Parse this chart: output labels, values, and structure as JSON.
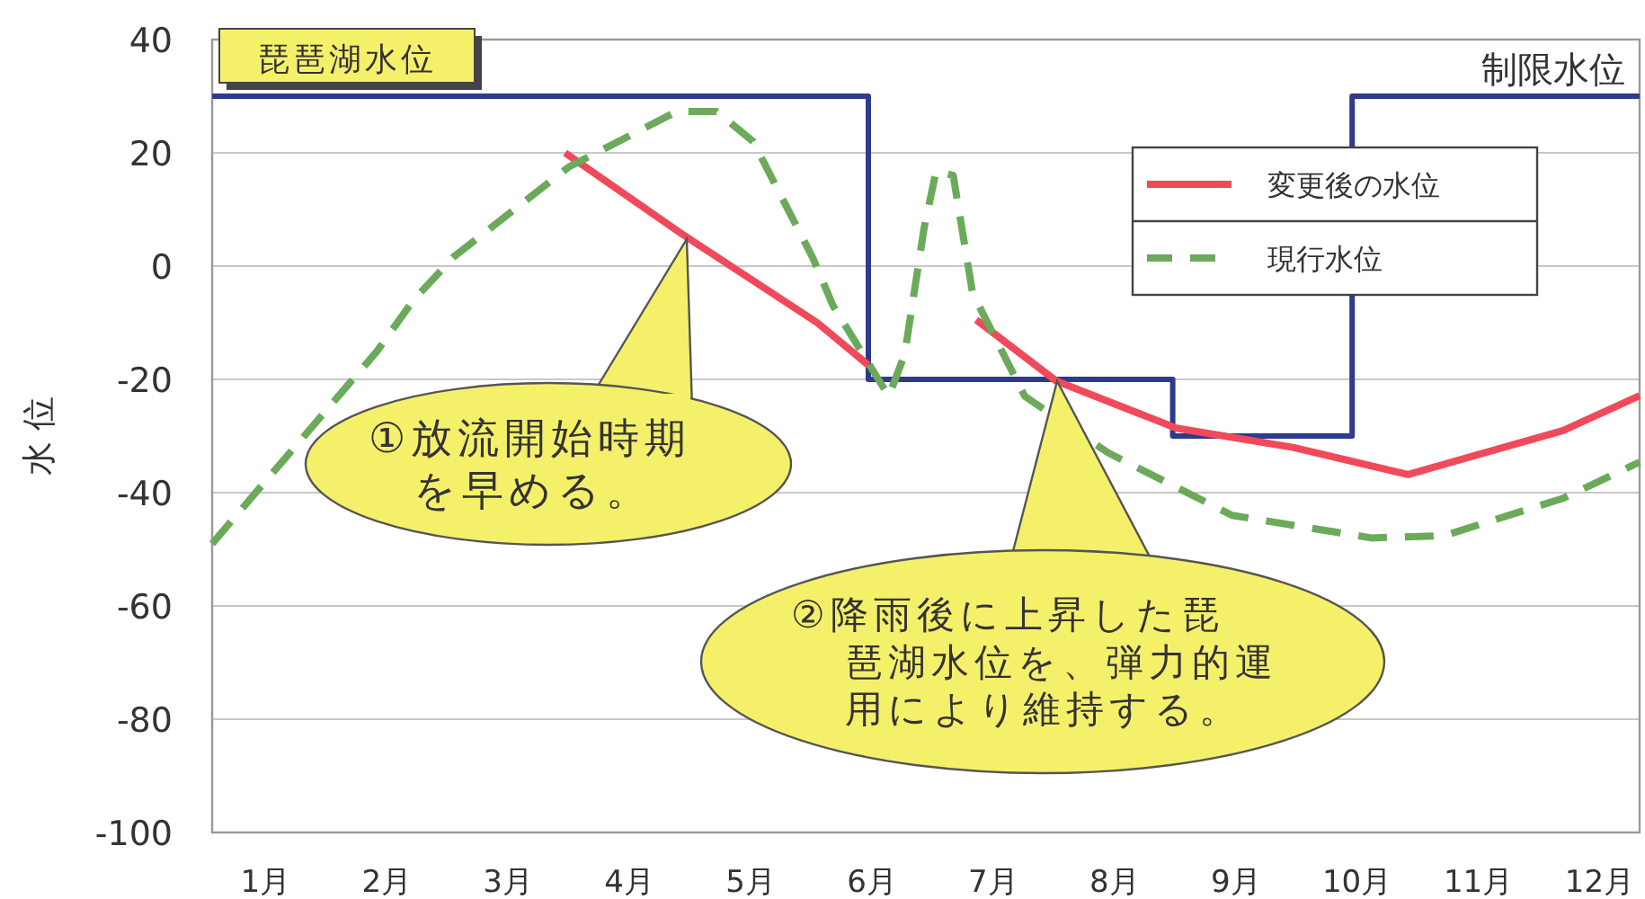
{
  "chart_data": {
    "type": "line",
    "title": "琵琶湖水位",
    "ylabel": "水 位",
    "x": [
      0.56,
      0.93,
      1.92,
      2.22,
      2.55,
      3.5,
      4.39,
      4.72,
      5.02,
      5.51,
      5.68,
      6.14,
      6.27,
      6.43,
      6.53,
      6.67,
      6.83,
      7.26,
      7.95,
      8.97,
      10.12,
      10.72,
      11.7,
      12.33
    ],
    "xlim": [
      0.56,
      12.33
    ],
    "ylim": [
      -100,
      40
    ],
    "yticks": [
      -100,
      -80,
      -60,
      -40,
      -20,
      0,
      20,
      40
    ],
    "xticks": [
      {
        "value": 1,
        "label": "1月"
      },
      {
        "value": 2,
        "label": "2月"
      },
      {
        "value": 3,
        "label": "3月"
      },
      {
        "value": 4,
        "label": "4月"
      },
      {
        "value": 5,
        "label": "5月"
      },
      {
        "value": 6,
        "label": "6月"
      },
      {
        "value": 7,
        "label": "7月"
      },
      {
        "value": 8,
        "label": "8月"
      },
      {
        "value": 9,
        "label": "9月"
      },
      {
        "value": 10,
        "label": "10月"
      },
      {
        "value": 11,
        "label": "11月"
      },
      {
        "value": 12,
        "label": "12月"
      }
    ],
    "grid": "y",
    "legend": "top right",
    "series": [
      {
        "name": "制限水位",
        "type": "step",
        "color": "#2e3a8c",
        "line_style": "solid",
        "x": [
          0.56,
          5.97,
          8.48,
          9.96,
          12.33
        ],
        "values": [
          30,
          -20,
          -30,
          30,
          30
        ]
      },
      {
        "name": "変更後の水位",
        "color": "#f04a5a",
        "line_style": "solid",
        "x": [
          3.47,
          4.43,
          5.55,
          5.97,
          null,
          6.86,
          7.52,
          8.51,
          9.47,
          10.42,
          11.7,
          12.33
        ],
        "values": [
          20,
          5.7,
          -10,
          -17.5,
          null,
          -9.5,
          -20.3,
          -28.6,
          -32,
          -36.8,
          -29,
          -22.9
        ]
      },
      {
        "name": "現行水位",
        "color": "#6aaa5a",
        "line_style": "dashed",
        "values": [
          -49,
          -39.7,
          -15,
          -6,
          1.6,
          17.5,
          27.3,
          27.3,
          22,
          1.6,
          -7,
          -23,
          -15.6,
          6.7,
          16.8,
          16,
          -4.8,
          -23,
          -33,
          -44,
          -48,
          -47.6,
          -41,
          -34.6
        ]
      }
    ],
    "annotations": [
      "①放流開始時期を早める。",
      "②降雨後に上昇した琵琶湖水位を、弾力的運用により維持する。"
    ]
  }
}
